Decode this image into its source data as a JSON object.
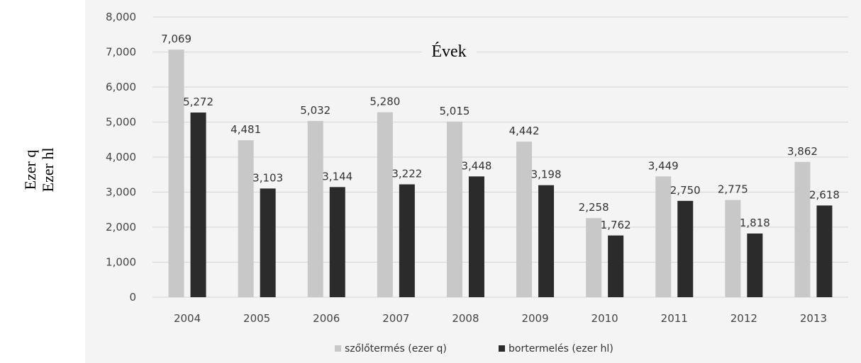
{
  "chart_data": {
    "type": "bar",
    "x_axis_title": "Évek",
    "y_axis_title": [
      "Ezer q",
      "Ezer hl"
    ],
    "categories": [
      "2004",
      "2005",
      "2006",
      "2007",
      "2008",
      "2009",
      "2010",
      "2011",
      "2012",
      "2013"
    ],
    "series": [
      {
        "name": "szőlőtermés (ezer q)",
        "color": "#c8c8c8",
        "values": [
          7069,
          4481,
          5032,
          5280,
          5015,
          4442,
          2258,
          3449,
          2775,
          3862
        ],
        "labels": [
          "7,069",
          "4,481",
          "5,032",
          "5,280",
          "5,015",
          "4,442",
          "2,258",
          "3,449",
          "2,775",
          "3,862"
        ]
      },
      {
        "name": "bortermelés (ezer hl)",
        "color": "#2b2b2b",
        "values": [
          5272,
          3103,
          3144,
          3222,
          3448,
          3198,
          1762,
          2750,
          1818,
          2618
        ],
        "labels": [
          "5,272",
          "3,103",
          "3,144",
          "3,222",
          "3,448",
          "3,198",
          "1,762",
          "2,750",
          "1,818",
          "2,618"
        ]
      }
    ],
    "ylim": [
      0,
      8000
    ],
    "yticks": [
      0,
      1000,
      2000,
      3000,
      4000,
      5000,
      6000,
      7000,
      8000
    ],
    "ytick_labels": [
      "0",
      "1,000",
      "2,000",
      "3,000",
      "4,000",
      "5,000",
      "6,000",
      "7,000",
      "8,000"
    ],
    "grid": true,
    "legend_position": "bottom"
  }
}
